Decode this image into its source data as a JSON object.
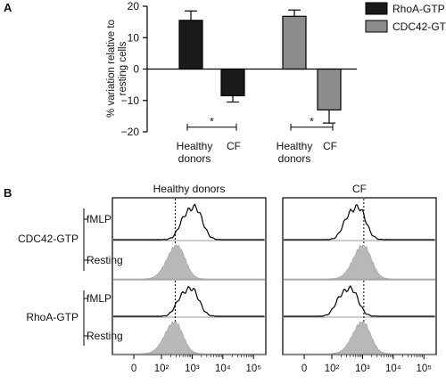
{
  "panel_a": {
    "label": "A",
    "chart_data": {
      "type": "bar",
      "ylabel": "% variation relative to resting cells",
      "ylabel_lines": [
        "% variation relative to",
        "resting cells"
      ],
      "ylim": [
        -20,
        20
      ],
      "yticks": [
        -20,
        -10,
        0,
        10,
        20
      ],
      "groups": [
        {
          "label_lines": [
            "Healthy",
            "donors"
          ]
        },
        {
          "label_lines": [
            "CF"
          ]
        },
        {
          "label_lines": [
            "Healthy",
            "donors"
          ]
        },
        {
          "label_lines": [
            "CF"
          ]
        }
      ],
      "series": [
        {
          "name": "RhoA-GTP",
          "color": "#1a1a1a",
          "values": [
            15.5,
            -8.5
          ],
          "errors": [
            3,
            2
          ]
        },
        {
          "name": "CDC42-GTP",
          "color": "#8c8c8c",
          "values": [
            16.8,
            -13
          ],
          "errors": [
            2,
            4.2
          ]
        }
      ],
      "significance": [
        {
          "marker": "*",
          "between": [
            0,
            1
          ],
          "y": -18.5
        },
        {
          "marker": "*",
          "between": [
            2,
            3
          ],
          "y": -18.5
        }
      ],
      "legend_placement": "top-right",
      "grid": false
    }
  },
  "panel_b": {
    "label": "B",
    "chart_data": {
      "type": "histogram",
      "x_scale": "log",
      "x_tick_labels": [
        "0",
        "10²",
        "10³",
        "10⁴",
        "10⁵"
      ],
      "x_ticks": [
        0,
        100,
        1000,
        10000,
        100000
      ],
      "columns": [
        {
          "title": "Healthy donors",
          "reference_line_x": 280
        },
        {
          "title": "CF",
          "reference_line_x": 1100
        }
      ],
      "row_groups": [
        {
          "name": "CDC42-GTP",
          "rows": [
            "fMLP",
            "Resting"
          ]
        },
        {
          "name": "RhoA-GTP",
          "rows": [
            "fMLP",
            "Resting"
          ]
        }
      ],
      "histograms": [
        {
          "column": 0,
          "group": 0,
          "row": "fMLP",
          "style": "outline",
          "peak_x": 1100
        },
        {
          "column": 0,
          "group": 0,
          "row": "Resting",
          "style": "filled",
          "peak_x": 320
        },
        {
          "column": 0,
          "group": 1,
          "row": "fMLP",
          "style": "outline",
          "peak_x": 850
        },
        {
          "column": 0,
          "group": 1,
          "row": "Resting",
          "style": "filled",
          "peak_x": 270
        },
        {
          "column": 1,
          "group": 0,
          "row": "fMLP",
          "style": "outline",
          "peak_x": 650
        },
        {
          "column": 1,
          "group": 0,
          "row": "Resting",
          "style": "filled",
          "peak_x": 1050
        },
        {
          "column": 1,
          "group": 1,
          "row": "fMLP",
          "style": "outline",
          "peak_x": 370
        },
        {
          "column": 1,
          "group": 1,
          "row": "Resting",
          "style": "filled",
          "peak_x": 1000
        }
      ],
      "colors": {
        "filled": "#b8b8b8",
        "outline": "#000000"
      }
    }
  }
}
